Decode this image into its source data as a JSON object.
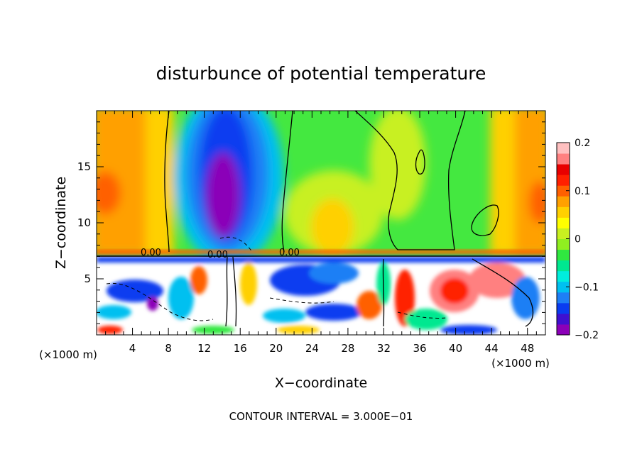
{
  "chart_data": {
    "type": "heatmap",
    "title": "disturbunce of potential temperature",
    "xlabel": "X−coordinate",
    "ylabel": "Z−coordinate",
    "x_unit_left": "(×1000 m)",
    "x_unit_right": "(×1000 m)",
    "xlim": [
      0,
      50
    ],
    "ylim": [
      0,
      20
    ],
    "x_ticks": [
      "4",
      "8",
      "12",
      "16",
      "20",
      "24",
      "28",
      "32",
      "36",
      "40",
      "44",
      "48"
    ],
    "y_ticks": [
      "5",
      "10",
      "15"
    ],
    "colorbar": {
      "range": [
        -0.2,
        0.2
      ],
      "tick_labels": [
        "0.2",
        "0.1",
        "0",
        "−0.1",
        "−0.2"
      ],
      "colors": [
        "#8b00b8",
        "#3f10d0",
        "#0a3cf0",
        "#1e7ff5",
        "#00c0f0",
        "#00eedd",
        "#00e890",
        "#30e840",
        "#90ee20",
        "#c8f020",
        "#ffff00",
        "#ffd000",
        "#ffa000",
        "#ff6000",
        "#ff2000",
        "#e80000",
        "#ff8080",
        "#ffc0c0"
      ]
    },
    "contour_labels": [
      "0.00",
      "0.00",
      "0.00"
    ],
    "footer": "CONTOUR INTERVAL = 3.000E−01"
  }
}
